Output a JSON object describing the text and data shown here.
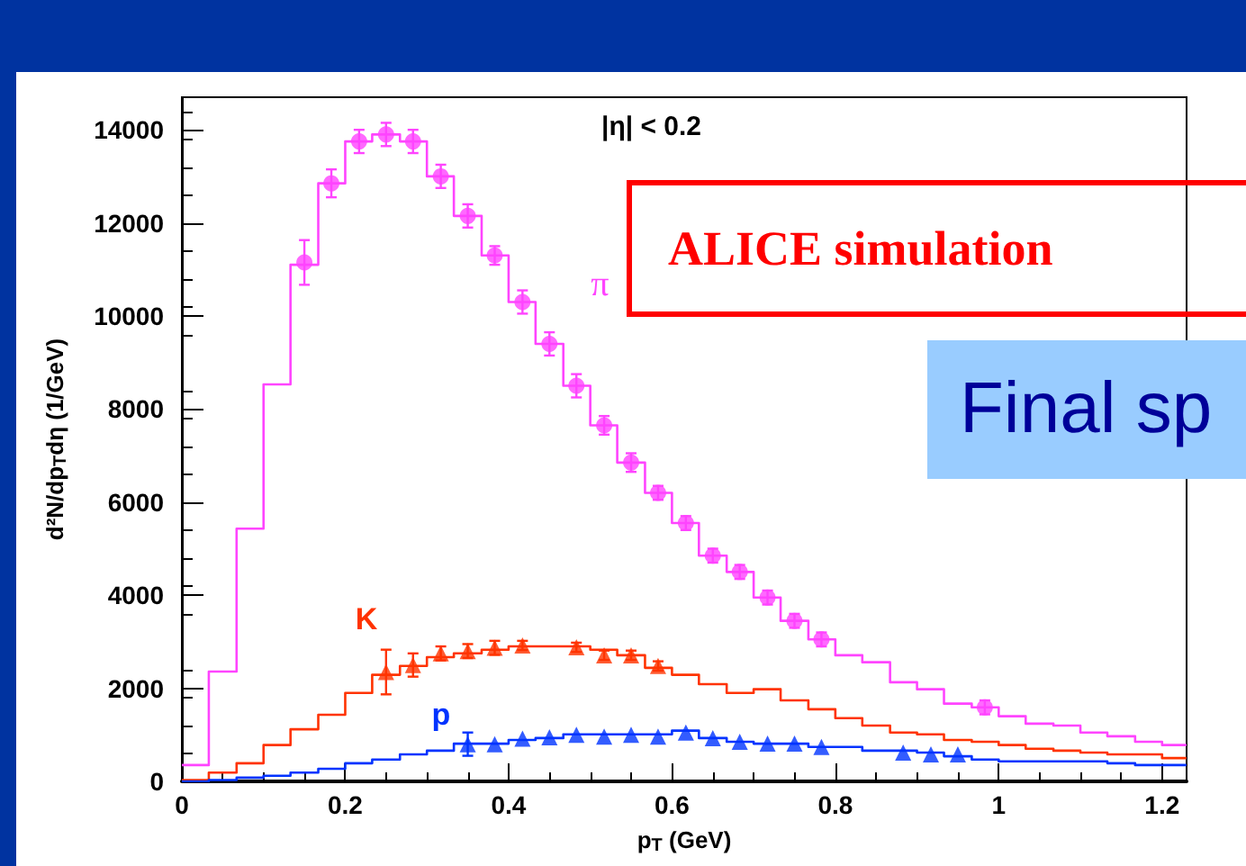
{
  "chart_data": {
    "type": "step",
    "xlabel": "p$_{T}$ (GeV)",
    "ylabel": "d²N/dp$_{T}$dη (1/GeV)",
    "annotations": [
      "|η| < 0.2",
      "ALICE simulation",
      "Final sp"
    ],
    "xlim": [
      0,
      1.23
    ],
    "xticks": [
      0,
      0.2,
      0.4,
      0.6,
      0.8,
      1,
      1.2
    ],
    "ylim": [
      0,
      14700
    ],
    "yticks": [
      0,
      2000,
      4000,
      6000,
      8000,
      10000,
      12000,
      14000
    ],
    "grid": false,
    "series": [
      {
        "color": "#ff44ff",
        "x": [
          0,
          0.033,
          0.067,
          0.1,
          0.133,
          0.167,
          0.2,
          0.233,
          0.267,
          0.3,
          0.333,
          0.367,
          0.4,
          0.433,
          0.467,
          0.5,
          0.533,
          0.567,
          0.6,
          0.633,
          0.667,
          0.7,
          0.733,
          0.767,
          0.8,
          0.833,
          0.867,
          0.9,
          0.933,
          0.967,
          1,
          1.033,
          1.067,
          1.1,
          1.133,
          1.167,
          1.2,
          1.23
        ],
        "values": [
          350,
          2360,
          5430,
          8530,
          11100,
          12850,
          13750,
          13900,
          13750,
          13000,
          12150,
          11300,
          10300,
          9400,
          8500,
          7650,
          6850,
          6200,
          5550,
          4850,
          4500,
          3950,
          3450,
          3050,
          2710,
          2560,
          2130,
          1980,
          1670,
          1590,
          1400,
          1240,
          1200,
          1050,
          970,
          850,
          780,
          780
        ]
      },
      {
        "color": "#ff3300",
        "x": [
          0,
          0.033,
          0.067,
          0.1,
          0.133,
          0.167,
          0.2,
          0.233,
          0.267,
          0.3,
          0.333,
          0.367,
          0.4,
          0.433,
          0.467,
          0.5,
          0.533,
          0.567,
          0.6,
          0.633,
          0.667,
          0.7,
          0.733,
          0.767,
          0.8,
          0.833,
          0.867,
          0.9,
          0.933,
          0.967,
          1,
          1.033,
          1.067,
          1.1,
          1.133,
          1.167,
          1.2,
          1.23
        ],
        "values": [
          30,
          190,
          390,
          780,
          1120,
          1430,
          1900,
          2290,
          2480,
          2670,
          2750,
          2830,
          2900,
          2900,
          2900,
          2830,
          2710,
          2440,
          2290,
          2090,
          1900,
          1980,
          1740,
          1550,
          1360,
          1200,
          1050,
          1010,
          890,
          850,
          780,
          700,
          660,
          620,
          580,
          580,
          500,
          500
        ]
      },
      {
        "color": "#0033ff",
        "x": [
          0,
          0.033,
          0.067,
          0.1,
          0.133,
          0.167,
          0.2,
          0.233,
          0.267,
          0.3,
          0.333,
          0.367,
          0.4,
          0.433,
          0.467,
          0.5,
          0.533,
          0.567,
          0.6,
          0.633,
          0.667,
          0.7,
          0.733,
          0.767,
          0.8,
          0.833,
          0.867,
          0.9,
          0.933,
          0.967,
          1,
          1.033,
          1.067,
          1.1,
          1.133,
          1.167,
          1.2,
          1.23
        ],
        "values": [
          0,
          30,
          80,
          120,
          190,
          270,
          390,
          470,
          580,
          660,
          810,
          810,
          890,
          930,
          1010,
          1010,
          1010,
          1010,
          1090,
          930,
          850,
          810,
          810,
          740,
          740,
          660,
          660,
          620,
          540,
          470,
          430,
          430,
          430,
          430,
          390,
          350,
          350,
          350
        ]
      },
      {
        "type": "scatter",
        "name": "π",
        "color": "#ff44ff",
        "marker": "circle",
        "x": [
          0.15,
          0.183,
          0.217,
          0.25,
          0.283,
          0.317,
          0.35,
          0.383,
          0.417,
          0.45,
          0.483,
          0.517,
          0.55,
          0.583,
          0.617,
          0.65,
          0.683,
          0.717,
          0.75,
          0.783,
          0.983
        ],
        "values": [
          11150,
          12850,
          13750,
          13900,
          13750,
          13000,
          12150,
          11300,
          10300,
          9400,
          8500,
          7650,
          6850,
          6200,
          5550,
          4850,
          4500,
          3950,
          3450,
          3050,
          1590
        ],
        "errors": [
          480,
          300,
          250,
          250,
          250,
          250,
          250,
          200,
          250,
          250,
          250,
          200,
          200,
          150,
          150,
          150,
          150,
          150,
          150,
          150,
          150
        ]
      },
      {
        "type": "scatter",
        "name": "K",
        "color": "#ff3300",
        "marker": "triangle",
        "x": [
          0.25,
          0.283,
          0.317,
          0.35,
          0.383,
          0.417,
          0.483,
          0.517,
          0.55,
          0.583
        ],
        "values": [
          2350,
          2500,
          2750,
          2800,
          2870,
          2920,
          2880,
          2710,
          2710,
          2480
        ],
        "errors": [
          480,
          250,
          150,
          150,
          150,
          100,
          100,
          100,
          100,
          100
        ]
      },
      {
        "type": "scatter",
        "name": "p",
        "color": "#0033ff",
        "marker": "triangle",
        "x": [
          0.35,
          0.383,
          0.417,
          0.45,
          0.483,
          0.517,
          0.55,
          0.583,
          0.617,
          0.65,
          0.683,
          0.717,
          0.75,
          0.783,
          0.883,
          0.917,
          0.95
        ],
        "values": [
          800,
          800,
          920,
          950,
          1000,
          960,
          1000,
          960,
          1050,
          930,
          850,
          810,
          810,
          740,
          620,
          580,
          580
        ],
        "errors": [
          250,
          null,
          null,
          null,
          null,
          null,
          null,
          null,
          null,
          null,
          null,
          null,
          null,
          null,
          null,
          null,
          null
        ]
      }
    ]
  }
}
